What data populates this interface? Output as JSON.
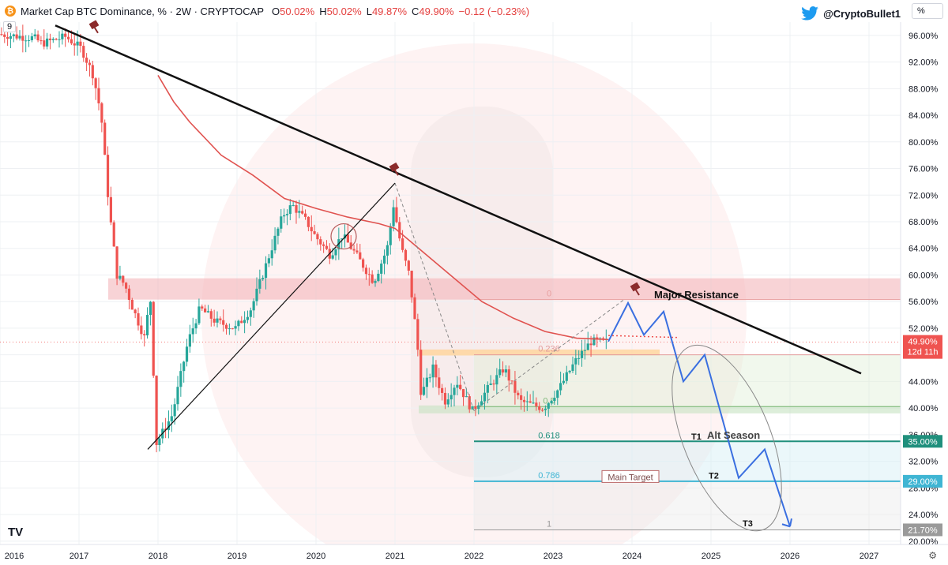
{
  "header": {
    "symbol_icon": "bitcoin-icon",
    "title": "Market Cap BTC Dominance, % · 2W · CRYPTOCAP",
    "o_label": "O",
    "o_value": "50.02%",
    "h_label": "H",
    "h_value": "50.02%",
    "l_label": "L",
    "l_value": "49.87%",
    "c_label": "C",
    "c_value": "49.90%",
    "change": "−0.12 (−0.23%)",
    "indicator": "9",
    "author": "@CryptoBullet1",
    "author_icon": "twitter-icon",
    "scale_button": "%"
  },
  "colors": {
    "up": "#26a69a",
    "down": "#ef5350",
    "ma": "#e0524f",
    "trendline": "#111111",
    "forecast": "#3a6fe0",
    "resistance_zone": "#f4b6bb",
    "support_zone": "#c7e3c1",
    "orange_zone": "#ffd59a",
    "fib_0618": "#1f8f7c",
    "fib_0786": "#3fb5d3",
    "fib_1": "#9a9a9a"
  },
  "chart_data": {
    "type": "candlestick",
    "interval": "2W",
    "y_unit": "%",
    "ylim": [
      19.5,
      98
    ],
    "xlim": [
      2016.0,
      2027.4
    ],
    "x_ticks": [
      "2016",
      "2017",
      "2018",
      "2019",
      "2020",
      "2021",
      "2022",
      "2023",
      "2024",
      "2025",
      "2026",
      "2027"
    ],
    "y_ticks": [
      "96.00%",
      "92.00%",
      "88.00%",
      "84.00%",
      "80.00%",
      "76.00%",
      "72.00%",
      "68.00%",
      "64.00%",
      "60.00%",
      "56.00%",
      "52.00%",
      "48.00%",
      "44.00%",
      "40.00%",
      "36.00%",
      "32.00%",
      "28.00%",
      "24.00%",
      "20.00%"
    ],
    "price_path": [
      [
        2016.0,
        96.2
      ],
      [
        2016.45,
        95.6
      ],
      [
        2016.55,
        94.8
      ],
      [
        2016.85,
        95.8
      ],
      [
        2017.05,
        94.0
      ],
      [
        2017.2,
        90.0
      ],
      [
        2017.3,
        84.0
      ],
      [
        2017.4,
        70.0
      ],
      [
        2017.5,
        60.0
      ],
      [
        2017.6,
        58.5
      ],
      [
        2017.7,
        55.0
      ],
      [
        2017.85,
        50.5
      ],
      [
        2017.92,
        57.0
      ],
      [
        2018.0,
        34.7
      ],
      [
        2018.2,
        39.0
      ],
      [
        2018.4,
        50.0
      ],
      [
        2018.55,
        55.0
      ],
      [
        2018.75,
        53.0
      ],
      [
        2019.0,
        52.0
      ],
      [
        2019.2,
        55.0
      ],
      [
        2019.4,
        62.0
      ],
      [
        2019.6,
        69.0
      ],
      [
        2019.72,
        70.5
      ],
      [
        2019.9,
        68.0
      ],
      [
        2020.0,
        66.0
      ],
      [
        2020.2,
        63.0
      ],
      [
        2020.35,
        66.0
      ],
      [
        2020.5,
        63.5
      ],
      [
        2020.75,
        59.0
      ],
      [
        2020.92,
        64.0
      ],
      [
        2021.0,
        70.5
      ],
      [
        2021.1,
        64.0
      ],
      [
        2021.2,
        60.0
      ],
      [
        2021.3,
        50.0
      ],
      [
        2021.35,
        42.0
      ],
      [
        2021.5,
        46.0
      ],
      [
        2021.65,
        41.0
      ],
      [
        2021.8,
        44.0
      ],
      [
        2022.0,
        39.6
      ],
      [
        2022.2,
        43.0
      ],
      [
        2022.4,
        46.0
      ],
      [
        2022.6,
        41.0
      ],
      [
        2022.9,
        40.0
      ],
      [
        2023.1,
        43.0
      ],
      [
        2023.3,
        47.0
      ],
      [
        2023.5,
        50.0
      ],
      [
        2023.68,
        49.9
      ]
    ],
    "sma_path": [
      [
        2018.0,
        90.0
      ],
      [
        2018.2,
        86.0
      ],
      [
        2018.4,
        83.0
      ],
      [
        2018.8,
        78.0
      ],
      [
        2019.2,
        75.0
      ],
      [
        2019.6,
        71.5
      ],
      [
        2020.0,
        70.0
      ],
      [
        2020.4,
        68.7
      ],
      [
        2020.8,
        67.7
      ],
      [
        2021.0,
        67.0
      ],
      [
        2021.3,
        64.0
      ],
      [
        2021.7,
        60.0
      ],
      [
        2022.1,
        56.0
      ],
      [
        2022.5,
        53.5
      ],
      [
        2022.9,
        51.5
      ],
      [
        2023.3,
        50.5
      ],
      [
        2023.7,
        50.3
      ]
    ],
    "trendline": [
      [
        2016.7,
        97.5
      ],
      [
        2026.9,
        45.2
      ]
    ],
    "support_line": [
      [
        2017.92,
        34.8
      ],
      [
        2021.0,
        73.8
      ]
    ],
    "forecast_path": [
      [
        2023.7,
        50.0
      ],
      [
        2023.95,
        55.8
      ],
      [
        2024.15,
        51.0
      ],
      [
        2024.4,
        54.5
      ],
      [
        2024.65,
        44.0
      ],
      [
        2024.92,
        48.0
      ],
      [
        2025.35,
        29.5
      ],
      [
        2025.68,
        33.8
      ],
      [
        2026.0,
        22.2
      ]
    ],
    "current_price": {
      "value": "49.90%",
      "countdown": "12d 11h"
    },
    "zones": [
      {
        "label": "Major Resistance",
        "range": [
          56.3,
          59.5
        ]
      },
      {
        "label": "",
        "range": [
          47.9,
          48.8
        ]
      },
      {
        "label": "",
        "range": [
          39.2,
          40.4
        ]
      }
    ],
    "fib_levels": [
      {
        "label": "0",
        "value": 56.3
      },
      {
        "label": "0.236",
        "value": 48.0
      },
      {
        "label": "0.5",
        "value": 40.2
      },
      {
        "label": "0.618",
        "value": 35.0
      },
      {
        "label": "0.786",
        "value": 29.0
      },
      {
        "label": "1",
        "value": 21.7
      }
    ],
    "price_tags": [
      {
        "label": "35.00%",
        "value": 35.0
      },
      {
        "label": "29.00%",
        "value": 29.0
      },
      {
        "label": "21.70%",
        "value": 21.7
      }
    ],
    "annotations": {
      "major_resistance": "Major Resistance",
      "alt_season": "Alt Season",
      "main_target": "Main Target",
      "t1": "T1",
      "t2": "T2",
      "t3": "T3"
    }
  },
  "footer": {
    "logo": "TV",
    "settings_icon": "gear-icon"
  }
}
